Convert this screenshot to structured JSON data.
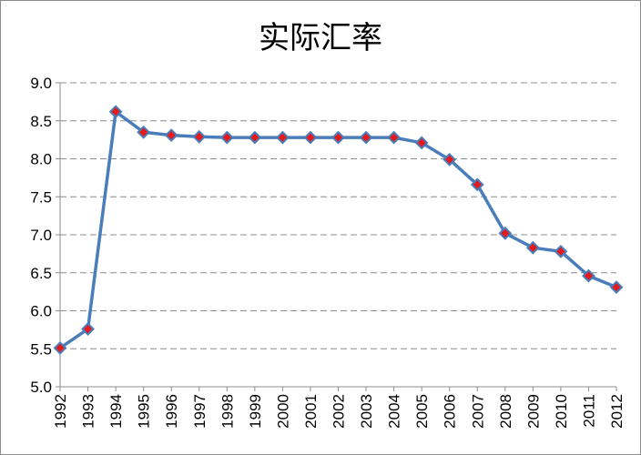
{
  "chart_data": {
    "type": "line",
    "title": "实际汇率",
    "xlabel": "",
    "ylabel": "",
    "ylim": [
      5.0,
      9.0
    ],
    "y_ticks": [
      "9.0",
      "8.5",
      "8.0",
      "7.5",
      "7.0",
      "6.5",
      "6.0",
      "5.5",
      "5.0"
    ],
    "grid": "horizontal dashed",
    "legend": "none",
    "categories": [
      "1992",
      "1993",
      "1994",
      "1995",
      "1996",
      "1997",
      "1998",
      "1999",
      "2000",
      "2001",
      "2002",
      "2003",
      "2004",
      "2005",
      "2006",
      "2007",
      "2008",
      "2009",
      "2010",
      "2011",
      "2012"
    ],
    "series": [
      {
        "values": [
          5.51,
          5.76,
          8.62,
          8.35,
          8.31,
          8.29,
          8.28,
          8.28,
          8.28,
          8.28,
          8.28,
          8.28,
          8.28,
          8.21,
          7.99,
          7.66,
          7.02,
          6.83,
          6.78,
          6.46,
          6.31
        ],
        "line_color": "#4a7ebb",
        "marker_fill": "#e41a1c",
        "marker_edge": "#4a7ebb",
        "marker": "diamond"
      }
    ]
  }
}
